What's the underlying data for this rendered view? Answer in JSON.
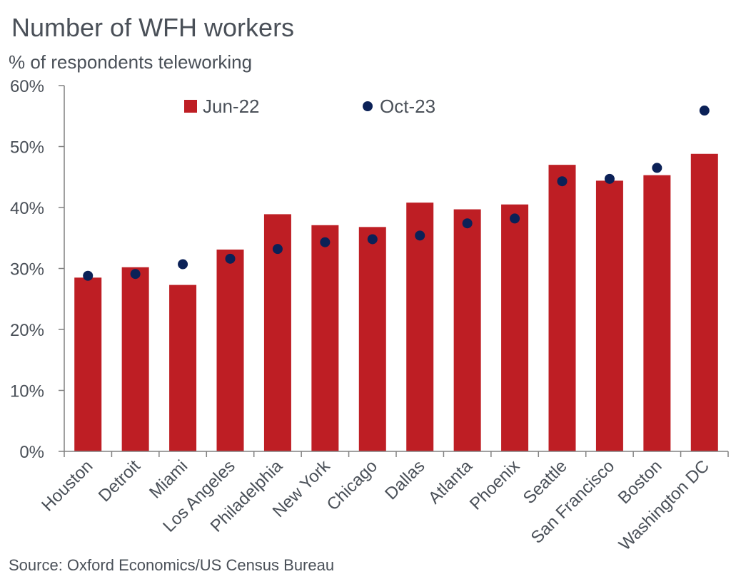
{
  "header": {
    "title": "Number of WFH workers",
    "subtitle": "% of respondents teleworking"
  },
  "footer": {
    "source": "Source: Oxford Economics/US Census Bureau"
  },
  "colors": {
    "bar": "#be1e24",
    "dot": "#0b2157",
    "axis": "#808080",
    "text": "#4a5058"
  },
  "chart_data": {
    "type": "bar",
    "title": "Number of WFH workers",
    "subtitle": "% of respondents teleworking",
    "xlabel": "",
    "ylabel": "",
    "ylim": [
      0,
      60
    ],
    "yticks": [
      0,
      10,
      20,
      30,
      40,
      50,
      60
    ],
    "ytick_labels": [
      "0%",
      "10%",
      "20%",
      "30%",
      "40%",
      "50%",
      "60%"
    ],
    "grid": false,
    "legend_position": "top",
    "categories": [
      "Houston",
      "Detroit",
      "Miami",
      "Los Angeles",
      "Philadelphia",
      "New York",
      "Chicago",
      "Dallas",
      "Atlanta",
      "Phoenix",
      "Seattle",
      "San Francisco",
      "Boston",
      "Washington DC"
    ],
    "series": [
      {
        "name": "Jun-22",
        "kind": "bar",
        "values": [
          28.5,
          30.2,
          27.3,
          33.1,
          38.9,
          37.1,
          36.8,
          40.8,
          39.7,
          40.5,
          47.0,
          44.4,
          45.3,
          48.8
        ]
      },
      {
        "name": "Oct-23",
        "kind": "dot",
        "values": [
          28.8,
          29.1,
          30.7,
          31.6,
          33.2,
          34.3,
          34.8,
          35.4,
          37.4,
          38.2,
          44.3,
          44.7,
          46.5,
          55.9
        ]
      }
    ],
    "source": "Source: Oxford Economics/US Census Bureau"
  }
}
